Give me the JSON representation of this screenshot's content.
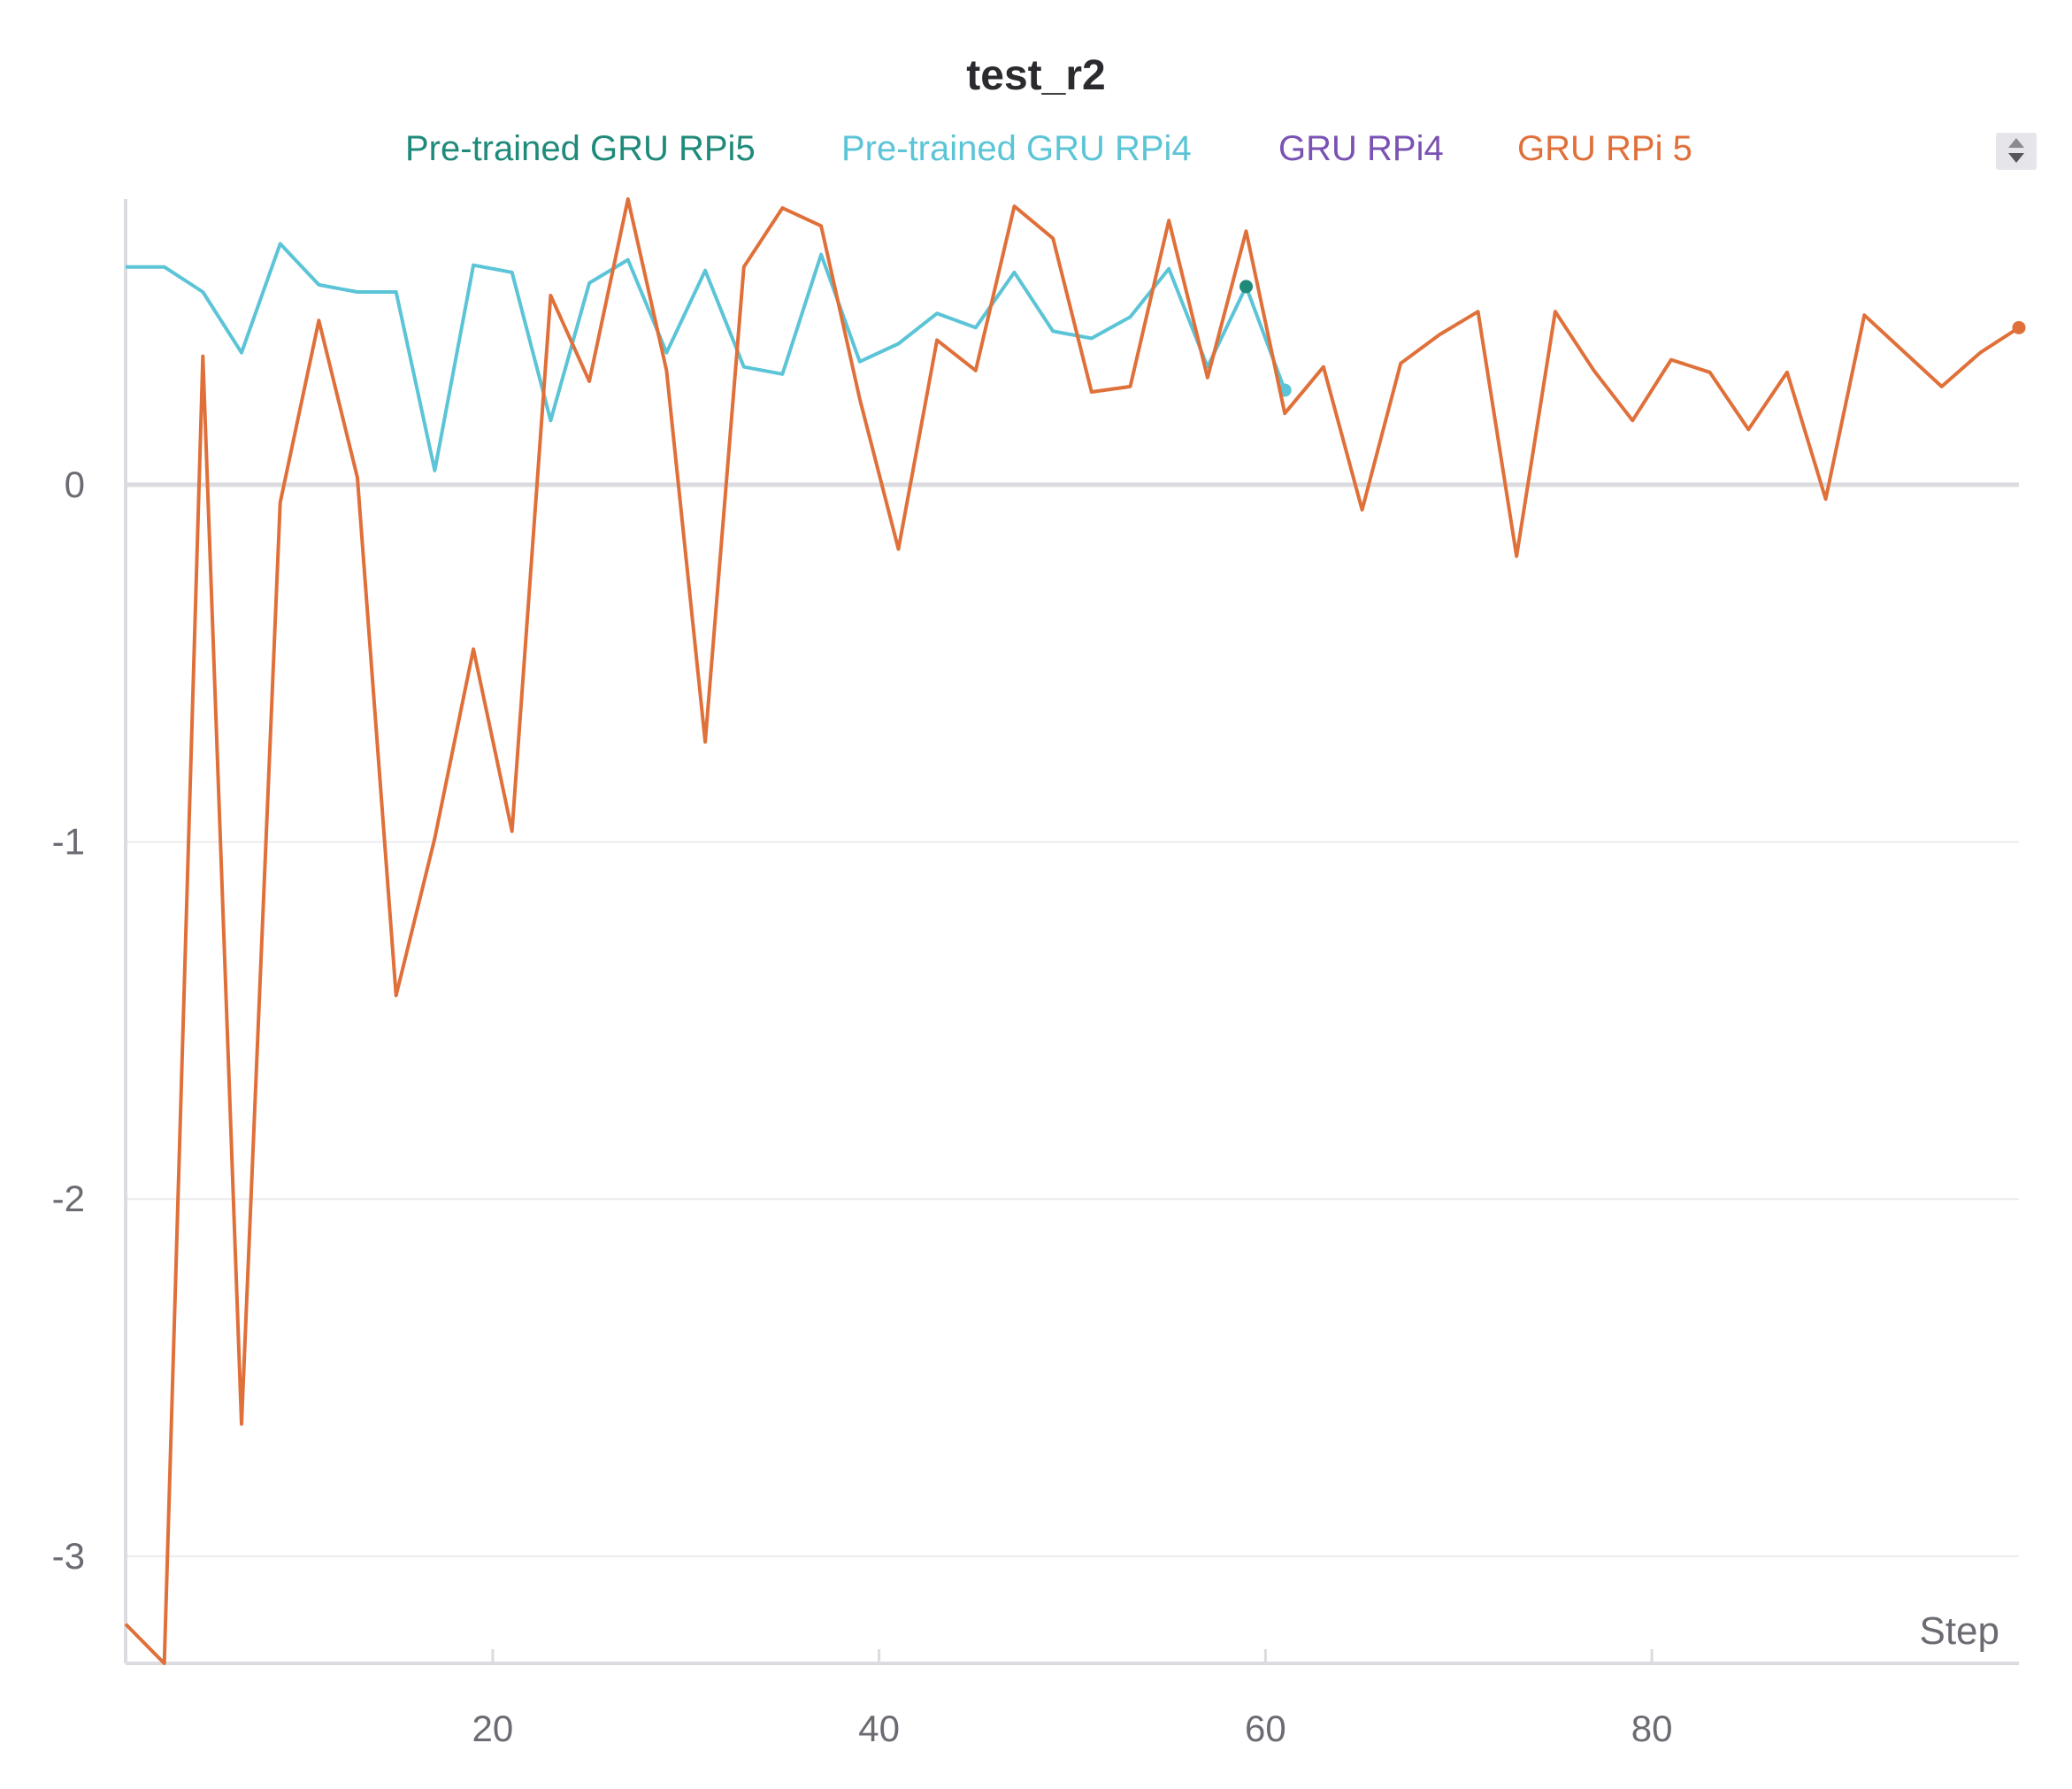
{
  "chart_data": {
    "type": "line",
    "title": "test_r2",
    "xlabel": "Step",
    "ylabel": "",
    "xlim": [
      1,
      99
    ],
    "ylim": [
      -3.3,
      0.8
    ],
    "xticks": [
      20,
      40,
      60,
      80
    ],
    "yticks": [
      0,
      -1,
      -2,
      -3
    ],
    "xtick_labels": [
      "20",
      "40",
      "60",
      "80"
    ],
    "ytick_labels": [
      "0",
      "-1",
      "-2",
      "-3"
    ],
    "grid": true,
    "legend_position": "top-center",
    "series": [
      {
        "name": "Pre-trained GRU RPi5",
        "color": "#1f8a7a",
        "x": [
          59
        ],
        "y": [
          0.555
        ]
      },
      {
        "name": "Pre-trained GRU RPi4",
        "color": "#5bc4d6",
        "x": [
          1,
          3,
          5,
          7,
          9,
          11,
          13,
          15,
          17,
          19,
          21,
          23,
          25,
          27,
          29,
          31,
          33,
          35,
          37,
          39,
          41,
          43,
          45,
          47,
          49,
          51,
          53,
          55,
          57,
          59,
          61
        ],
        "y": [
          0.61,
          0.61,
          0.54,
          0.37,
          0.675,
          0.56,
          0.54,
          0.54,
          0.04,
          0.615,
          0.595,
          0.18,
          0.565,
          0.63,
          0.37,
          0.6,
          0.33,
          0.31,
          0.645,
          0.345,
          0.395,
          0.48,
          0.44,
          0.595,
          0.43,
          0.41,
          0.47,
          0.605,
          0.33,
          0.555,
          0.265
        ]
      },
      {
        "name": "GRU RPi4",
        "color": "#7a52b3",
        "x": [],
        "y": []
      },
      {
        "name": "GRU RPi 5",
        "color": "#e0703a",
        "x": [
          1,
          3,
          5,
          7,
          9,
          11,
          13,
          15,
          17,
          19,
          21,
          23,
          25,
          27,
          29,
          31,
          33,
          35,
          37,
          39,
          41,
          43,
          45,
          47,
          49,
          51,
          53,
          55,
          57,
          59,
          61,
          63,
          65,
          67,
          69,
          71,
          73,
          75,
          77,
          79,
          81,
          83,
          85,
          87,
          89,
          91,
          93,
          95,
          97,
          99
        ],
        "y": [
          -3.19,
          -3.3,
          0.36,
          -2.63,
          -0.05,
          0.46,
          0.02,
          -1.43,
          -0.99,
          -0.46,
          -0.97,
          0.53,
          0.29,
          0.8,
          0.32,
          -0.72,
          0.61,
          0.775,
          0.725,
          0.24,
          -0.18,
          0.405,
          0.32,
          0.78,
          0.69,
          0.26,
          0.275,
          0.74,
          0.3,
          0.71,
          0.2,
          0.33,
          -0.07,
          0.34,
          0.42,
          0.485,
          -0.2,
          0.485,
          0.32,
          0.18,
          0.35,
          0.315,
          0.155,
          0.315,
          -0.04,
          0.475,
          0.375,
          0.275,
          0.37,
          0.44
        ]
      }
    ]
  }
}
